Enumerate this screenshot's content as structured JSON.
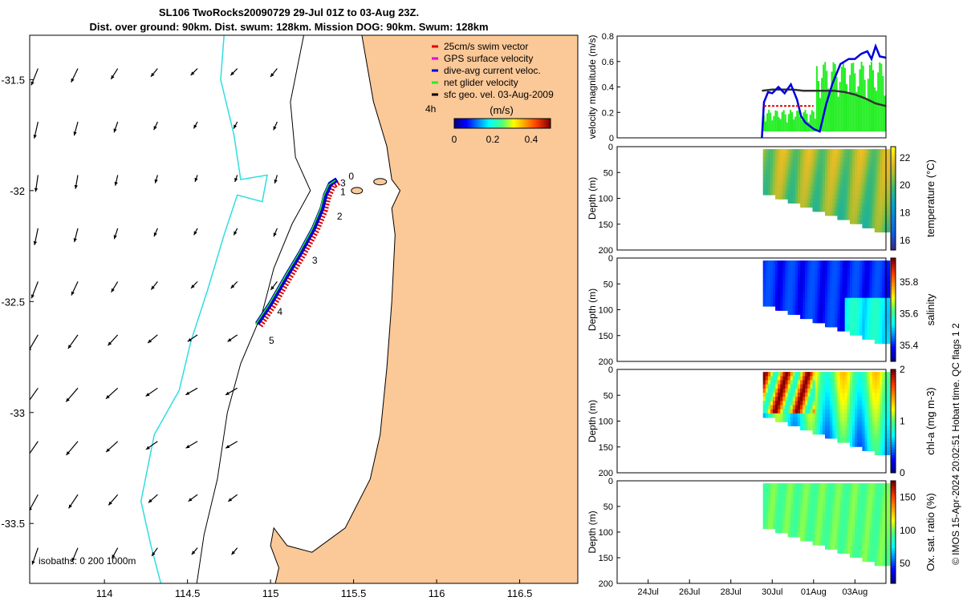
{
  "title": {
    "line1": "SL106 TwoRocks20090729 29-Jul 01Z to 03-Aug 23Z.",
    "line2": "Dist. over ground: 90km. Dist. swum: 128km. Mission DOG: 90km. Swum: 128km"
  },
  "credit": "© IMOS 15-Apr-2024 20:02:51 Hobart time. QC flags 1  2",
  "colors": {
    "land": "#FBC898",
    "isobath_shallow": "#000000",
    "isobath_deep": "#30DDE0",
    "track_dive_avg": "#0000CC",
    "swim_vector": "#E00000",
    "net_velocity": "#22EE22",
    "geo_velocity": "#333333"
  },
  "chart_data": [
    {
      "type": "map",
      "name": "glider track map",
      "xlim": [
        113.55,
        116.85
      ],
      "ylim": [
        -33.77,
        -31.3
      ],
      "xticks": [
        114,
        114.5,
        115,
        115.5,
        116,
        116.5
      ],
      "xtick_labels": [
        "114",
        "114.5",
        "115",
        "115.5",
        "116",
        "116.5"
      ],
      "yticks": [
        -31.5,
        -32,
        -32.5,
        -33,
        -33.5
      ],
      "ytick_labels": [
        "-31.5",
        "-32",
        "-32.5",
        "-33",
        "-33.5"
      ],
      "legend": [
        {
          "label": "25cm/s swim vector",
          "color": "#E00000"
        },
        {
          "label": "GPS surface velocity",
          "color": "#E000E0"
        },
        {
          "label": "dive-avg current veloc.",
          "color": "#0000DD"
        },
        {
          "label": "net glider velocity",
          "color": "#22EE22"
        },
        {
          "label": "sfc geo. vel. 03-Aug-2009",
          "color": "#000000"
        }
      ],
      "colorbar": {
        "label": "(m/s)",
        "ticks": [
          "0",
          "0.2",
          "0.4"
        ],
        "range": [
          0,
          0.5
        ],
        "side_label": "4h"
      },
      "isobath_label": "isobaths: 0   200  1000m",
      "track": [
        [
          114.92,
          -32.6
        ],
        [
          115.0,
          -32.51
        ],
        [
          115.1,
          -32.38
        ],
        [
          115.18,
          -32.28
        ],
        [
          115.26,
          -32.17
        ],
        [
          115.31,
          -32.08
        ],
        [
          115.33,
          -32.02
        ],
        [
          115.36,
          -31.97
        ],
        [
          115.4,
          -31.95
        ]
      ],
      "day_markers": [
        {
          "label": "0",
          "lon": 115.47,
          "lat": -31.95
        },
        {
          "label": "1",
          "lon": 115.42,
          "lat": -32.02
        },
        {
          "label": "2",
          "lon": 115.4,
          "lat": -32.13
        },
        {
          "label": "3",
          "lon": 115.42,
          "lat": -31.98
        },
        {
          "label": "3",
          "lon": 115.25,
          "lat": -32.33
        },
        {
          "label": "4",
          "lon": 115.04,
          "lat": -32.56
        },
        {
          "label": "5",
          "lon": 114.99,
          "lat": -32.69
        }
      ]
    },
    {
      "type": "line",
      "name": "velocity magnitude",
      "ylabel": "velocity magnitude (m/s)",
      "ylim": [
        0,
        0.8
      ],
      "yticks": [
        "0",
        "0.2",
        "0.4",
        "0.6",
        "0.8"
      ],
      "xlim_days": [
        22.5,
        35.5
      ],
      "series": [
        {
          "name": "sfc geo. vel.",
          "color": "#333333",
          "x": [
            29.5,
            30.0,
            30.5,
            31.0,
            31.5,
            32.0,
            32.5,
            33.0,
            33.5,
            34.0,
            34.5,
            35.0,
            35.5
          ],
          "y": [
            0.37,
            0.38,
            0.38,
            0.38,
            0.37,
            0.37,
            0.37,
            0.37,
            0.36,
            0.34,
            0.31,
            0.27,
            0.25
          ]
        },
        {
          "name": "dive-avg current veloc.",
          "color": "#0000DD",
          "x": [
            29.5,
            29.6,
            29.8,
            30.0,
            30.3,
            30.6,
            30.9,
            31.2,
            31.4,
            31.6,
            32.0,
            32.3,
            32.6,
            32.9,
            33.3,
            33.7,
            34.0,
            34.3,
            34.6,
            34.8,
            35.0,
            35.2,
            35.5
          ],
          "y": [
            0.0,
            0.28,
            0.36,
            0.35,
            0.4,
            0.35,
            0.42,
            0.3,
            0.17,
            0.12,
            0.07,
            0.05,
            0.26,
            0.42,
            0.58,
            0.62,
            0.62,
            0.66,
            0.68,
            0.62,
            0.72,
            0.64,
            0.63
          ]
        },
        {
          "name": "25cm/s swim vector",
          "color": "#E00000",
          "x": [
            29.6,
            32.0
          ],
          "y": [
            0.25,
            0.25
          ]
        }
      ]
    },
    {
      "type": "heatmap",
      "name": "temperature section",
      "ylabel": "Depth (m)",
      "ylim": [
        0,
        200
      ],
      "yticks": [
        "0",
        "50",
        "100",
        "150",
        "200"
      ],
      "colorbar_label": "temperature (°C)",
      "colorbar_ticks": [
        "16",
        "18",
        "20",
        "22"
      ],
      "crange": [
        15.3,
        22.8
      ]
    },
    {
      "type": "heatmap",
      "name": "salinity section",
      "ylabel": "Depth (m)",
      "ylim": [
        0,
        200
      ],
      "yticks": [
        "0",
        "50",
        "100",
        "150",
        "200"
      ],
      "colorbar_label": "salinity",
      "colorbar_ticks": [
        "35.4",
        "35.6",
        "35.8"
      ],
      "crange": [
        35.3,
        35.95
      ]
    },
    {
      "type": "heatmap",
      "name": "chlorophyll section",
      "ylabel": "Depth (m)",
      "ylim": [
        0,
        200
      ],
      "yticks": [
        "0",
        "50",
        "100",
        "150",
        "200"
      ],
      "colorbar_label": "chl-a (mg m-3)",
      "colorbar_ticks": [
        "0",
        "1",
        "2"
      ],
      "crange": [
        0,
        2
      ]
    },
    {
      "type": "heatmap",
      "name": "oxygen section",
      "ylabel": "Depth (m)",
      "ylim": [
        0,
        200
      ],
      "yticks": [
        "0",
        "50",
        "100",
        "150",
        "200"
      ],
      "colorbar_label": "Ox. sat. ratio (%)",
      "colorbar_ticks": [
        "50",
        "100",
        "150"
      ],
      "crange": [
        20,
        175
      ],
      "xticks_days": [
        24,
        26,
        28,
        30,
        32,
        34
      ],
      "xtick_labels": [
        "24Jul",
        "26Jul",
        "28Jul",
        "30Jul",
        "01Aug",
        "03Aug"
      ]
    }
  ]
}
